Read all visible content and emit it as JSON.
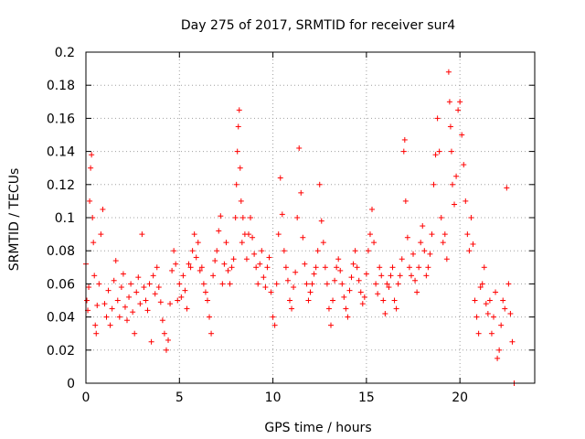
{
  "chart_data": {
    "type": "scatter",
    "title": "Day 275 of 2017, SRMTID for receiver sur4",
    "xlabel": "GPS time / hours",
    "ylabel": "SRMTID / TECUs",
    "xlim": [
      0,
      24
    ],
    "ylim": [
      0,
      0.2
    ],
    "x_ticks": [
      0,
      5,
      10,
      15,
      20
    ],
    "x_tick_labels": [
      "0",
      "5",
      "10",
      "15",
      "20"
    ],
    "y_ticks": [
      0,
      0.02,
      0.04,
      0.06,
      0.08,
      0.1,
      0.12,
      0.14,
      0.16,
      0.18,
      0.2
    ],
    "y_tick_labels": [
      "0",
      "0.02",
      "0.04",
      "0.06",
      "0.08",
      "0.1",
      "0.12",
      "0.14",
      "0.16",
      "0.18",
      "0.2"
    ],
    "grid": true,
    "marker": "+",
    "color": "#ff0000",
    "series": [
      {
        "name": "SRMTID",
        "points": [
          [
            0.0,
            0.072
          ],
          [
            0.05,
            0.05
          ],
          [
            0.1,
            0.044
          ],
          [
            0.15,
            0.058
          ],
          [
            0.2,
            0.11
          ],
          [
            0.25,
            0.13
          ],
          [
            0.3,
            0.138
          ],
          [
            0.35,
            0.1
          ],
          [
            0.4,
            0.085
          ],
          [
            0.45,
            0.065
          ],
          [
            0.5,
            0.035
          ],
          [
            0.55,
            0.03
          ],
          [
            0.6,
            0.047
          ],
          [
            0.7,
            0.06
          ],
          [
            0.8,
            0.09
          ],
          [
            0.9,
            0.105
          ],
          [
            1.0,
            0.048
          ],
          [
            1.1,
            0.04
          ],
          [
            1.2,
            0.056
          ],
          [
            1.3,
            0.035
          ],
          [
            1.4,
            0.045
          ],
          [
            1.5,
            0.062
          ],
          [
            1.6,
            0.074
          ],
          [
            1.7,
            0.05
          ],
          [
            1.8,
            0.04
          ],
          [
            1.9,
            0.058
          ],
          [
            2.0,
            0.066
          ],
          [
            2.1,
            0.046
          ],
          [
            2.2,
            0.038
          ],
          [
            2.3,
            0.052
          ],
          [
            2.4,
            0.06
          ],
          [
            2.5,
            0.043
          ],
          [
            2.6,
            0.03
          ],
          [
            2.7,
            0.055
          ],
          [
            2.8,
            0.064
          ],
          [
            2.9,
            0.048
          ],
          [
            3.0,
            0.09
          ],
          [
            3.1,
            0.058
          ],
          [
            3.2,
            0.05
          ],
          [
            3.3,
            0.044
          ],
          [
            3.4,
            0.06
          ],
          [
            3.5,
            0.025
          ],
          [
            3.6,
            0.065
          ],
          [
            3.7,
            0.054
          ],
          [
            3.8,
            0.07
          ],
          [
            3.9,
            0.058
          ],
          [
            4.0,
            0.049
          ],
          [
            4.1,
            0.038
          ],
          [
            4.2,
            0.03
          ],
          [
            4.3,
            0.02
          ],
          [
            4.4,
            0.026
          ],
          [
            4.5,
            0.048
          ],
          [
            4.6,
            0.068
          ],
          [
            4.7,
            0.08
          ],
          [
            4.8,
            0.072
          ],
          [
            4.9,
            0.05
          ],
          [
            5.0,
            0.06
          ],
          [
            5.1,
            0.052
          ],
          [
            5.2,
            0.065
          ],
          [
            5.3,
            0.056
          ],
          [
            5.4,
            0.045
          ],
          [
            5.5,
            0.072
          ],
          [
            5.6,
            0.07
          ],
          [
            5.7,
            0.08
          ],
          [
            5.8,
            0.09
          ],
          [
            5.9,
            0.076
          ],
          [
            6.0,
            0.085
          ],
          [
            6.1,
            0.068
          ],
          [
            6.2,
            0.07
          ],
          [
            6.3,
            0.06
          ],
          [
            6.4,
            0.055
          ],
          [
            6.5,
            0.05
          ],
          [
            6.6,
            0.04
          ],
          [
            6.7,
            0.03
          ],
          [
            6.8,
            0.065
          ],
          [
            6.9,
            0.074
          ],
          [
            7.0,
            0.08
          ],
          [
            7.1,
            0.092
          ],
          [
            7.2,
            0.101
          ],
          [
            7.3,
            0.06
          ],
          [
            7.4,
            0.072
          ],
          [
            7.5,
            0.085
          ],
          [
            7.6,
            0.068
          ],
          [
            7.7,
            0.06
          ],
          [
            7.8,
            0.07
          ],
          [
            7.9,
            0.075
          ],
          [
            8.0,
            0.1
          ],
          [
            8.05,
            0.12
          ],
          [
            8.1,
            0.14
          ],
          [
            8.15,
            0.155
          ],
          [
            8.2,
            0.165
          ],
          [
            8.25,
            0.13
          ],
          [
            8.3,
            0.11
          ],
          [
            8.35,
            0.085
          ],
          [
            8.4,
            0.1
          ],
          [
            8.5,
            0.09
          ],
          [
            8.6,
            0.075
          ],
          [
            8.7,
            0.09
          ],
          [
            8.8,
            0.1
          ],
          [
            8.9,
            0.088
          ],
          [
            9.0,
            0.078
          ],
          [
            9.1,
            0.07
          ],
          [
            9.2,
            0.06
          ],
          [
            9.3,
            0.072
          ],
          [
            9.4,
            0.08
          ],
          [
            9.5,
            0.064
          ],
          [
            9.6,
            0.058
          ],
          [
            9.7,
            0.07
          ],
          [
            9.8,
            0.076
          ],
          [
            9.9,
            0.055
          ],
          [
            10.0,
            0.04
          ],
          [
            10.1,
            0.035
          ],
          [
            10.2,
            0.06
          ],
          [
            10.3,
            0.09
          ],
          [
            10.4,
            0.124
          ],
          [
            10.5,
            0.102
          ],
          [
            10.6,
            0.08
          ],
          [
            10.7,
            0.07
          ],
          [
            10.8,
            0.062
          ],
          [
            10.9,
            0.05
          ],
          [
            11.0,
            0.045
          ],
          [
            11.1,
            0.058
          ],
          [
            11.2,
            0.067
          ],
          [
            11.3,
            0.1
          ],
          [
            11.4,
            0.142
          ],
          [
            11.5,
            0.115
          ],
          [
            11.6,
            0.088
          ],
          [
            11.7,
            0.072
          ],
          [
            11.8,
            0.06
          ],
          [
            11.9,
            0.05
          ],
          [
            12.0,
            0.055
          ],
          [
            12.1,
            0.06
          ],
          [
            12.2,
            0.066
          ],
          [
            12.3,
            0.07
          ],
          [
            12.4,
            0.08
          ],
          [
            12.5,
            0.12
          ],
          [
            12.6,
            0.098
          ],
          [
            12.7,
            0.085
          ],
          [
            12.8,
            0.07
          ],
          [
            12.9,
            0.06
          ],
          [
            13.0,
            0.045
          ],
          [
            13.1,
            0.035
          ],
          [
            13.2,
            0.05
          ],
          [
            13.3,
            0.062
          ],
          [
            13.4,
            0.07
          ],
          [
            13.5,
            0.075
          ],
          [
            13.6,
            0.068
          ],
          [
            13.7,
            0.06
          ],
          [
            13.8,
            0.052
          ],
          [
            13.9,
            0.045
          ],
          [
            14.0,
            0.04
          ],
          [
            14.1,
            0.056
          ],
          [
            14.2,
            0.064
          ],
          [
            14.3,
            0.072
          ],
          [
            14.4,
            0.08
          ],
          [
            14.5,
            0.07
          ],
          [
            14.6,
            0.062
          ],
          [
            14.7,
            0.055
          ],
          [
            14.8,
            0.048
          ],
          [
            14.9,
            0.052
          ],
          [
            15.0,
            0.066
          ],
          [
            15.1,
            0.08
          ],
          [
            15.2,
            0.09
          ],
          [
            15.3,
            0.105
          ],
          [
            15.4,
            0.085
          ],
          [
            15.5,
            0.06
          ],
          [
            15.6,
            0.054
          ],
          [
            15.7,
            0.07
          ],
          [
            15.8,
            0.065
          ],
          [
            15.9,
            0.05
          ],
          [
            16.0,
            0.042
          ],
          [
            16.1,
            0.06
          ],
          [
            16.2,
            0.058
          ],
          [
            16.3,
            0.065
          ],
          [
            16.4,
            0.07
          ],
          [
            16.5,
            0.05
          ],
          [
            16.6,
            0.045
          ],
          [
            16.7,
            0.06
          ],
          [
            16.8,
            0.065
          ],
          [
            16.9,
            0.075
          ],
          [
            17.0,
            0.14
          ],
          [
            17.05,
            0.147
          ],
          [
            17.1,
            0.11
          ],
          [
            17.2,
            0.088
          ],
          [
            17.3,
            0.07
          ],
          [
            17.4,
            0.065
          ],
          [
            17.5,
            0.078
          ],
          [
            17.6,
            0.062
          ],
          [
            17.7,
            0.055
          ],
          [
            17.8,
            0.07
          ],
          [
            17.9,
            0.085
          ],
          [
            18.0,
            0.095
          ],
          [
            18.1,
            0.08
          ],
          [
            18.2,
            0.065
          ],
          [
            18.3,
            0.07
          ],
          [
            18.4,
            0.078
          ],
          [
            18.5,
            0.09
          ],
          [
            18.6,
            0.12
          ],
          [
            18.7,
            0.138
          ],
          [
            18.8,
            0.16
          ],
          [
            18.9,
            0.14
          ],
          [
            19.0,
            0.1
          ],
          [
            19.1,
            0.085
          ],
          [
            19.2,
            0.09
          ],
          [
            19.3,
            0.075
          ],
          [
            19.4,
            0.188
          ],
          [
            19.45,
            0.17
          ],
          [
            19.5,
            0.155
          ],
          [
            19.55,
            0.14
          ],
          [
            19.6,
            0.12
          ],
          [
            19.7,
            0.108
          ],
          [
            19.8,
            0.125
          ],
          [
            19.9,
            0.165
          ],
          [
            20.0,
            0.17
          ],
          [
            20.1,
            0.15
          ],
          [
            20.2,
            0.132
          ],
          [
            20.3,
            0.11
          ],
          [
            20.4,
            0.09
          ],
          [
            20.5,
            0.08
          ],
          [
            20.6,
            0.1
          ],
          [
            20.7,
            0.084
          ],
          [
            20.8,
            0.05
          ],
          [
            20.9,
            0.04
          ],
          [
            21.0,
            0.03
          ],
          [
            21.1,
            0.058
          ],
          [
            21.2,
            0.06
          ],
          [
            21.3,
            0.07
          ],
          [
            21.4,
            0.048
          ],
          [
            21.5,
            0.042
          ],
          [
            21.6,
            0.05
          ],
          [
            21.7,
            0.03
          ],
          [
            21.8,
            0.04
          ],
          [
            21.9,
            0.055
          ],
          [
            22.0,
            0.015
          ],
          [
            22.1,
            0.02
          ],
          [
            22.2,
            0.035
          ],
          [
            22.3,
            0.05
          ],
          [
            22.4,
            0.045
          ],
          [
            22.5,
            0.118
          ],
          [
            22.6,
            0.06
          ],
          [
            22.7,
            0.042
          ],
          [
            22.8,
            0.025
          ],
          [
            22.9,
            0.0
          ]
        ]
      }
    ]
  }
}
